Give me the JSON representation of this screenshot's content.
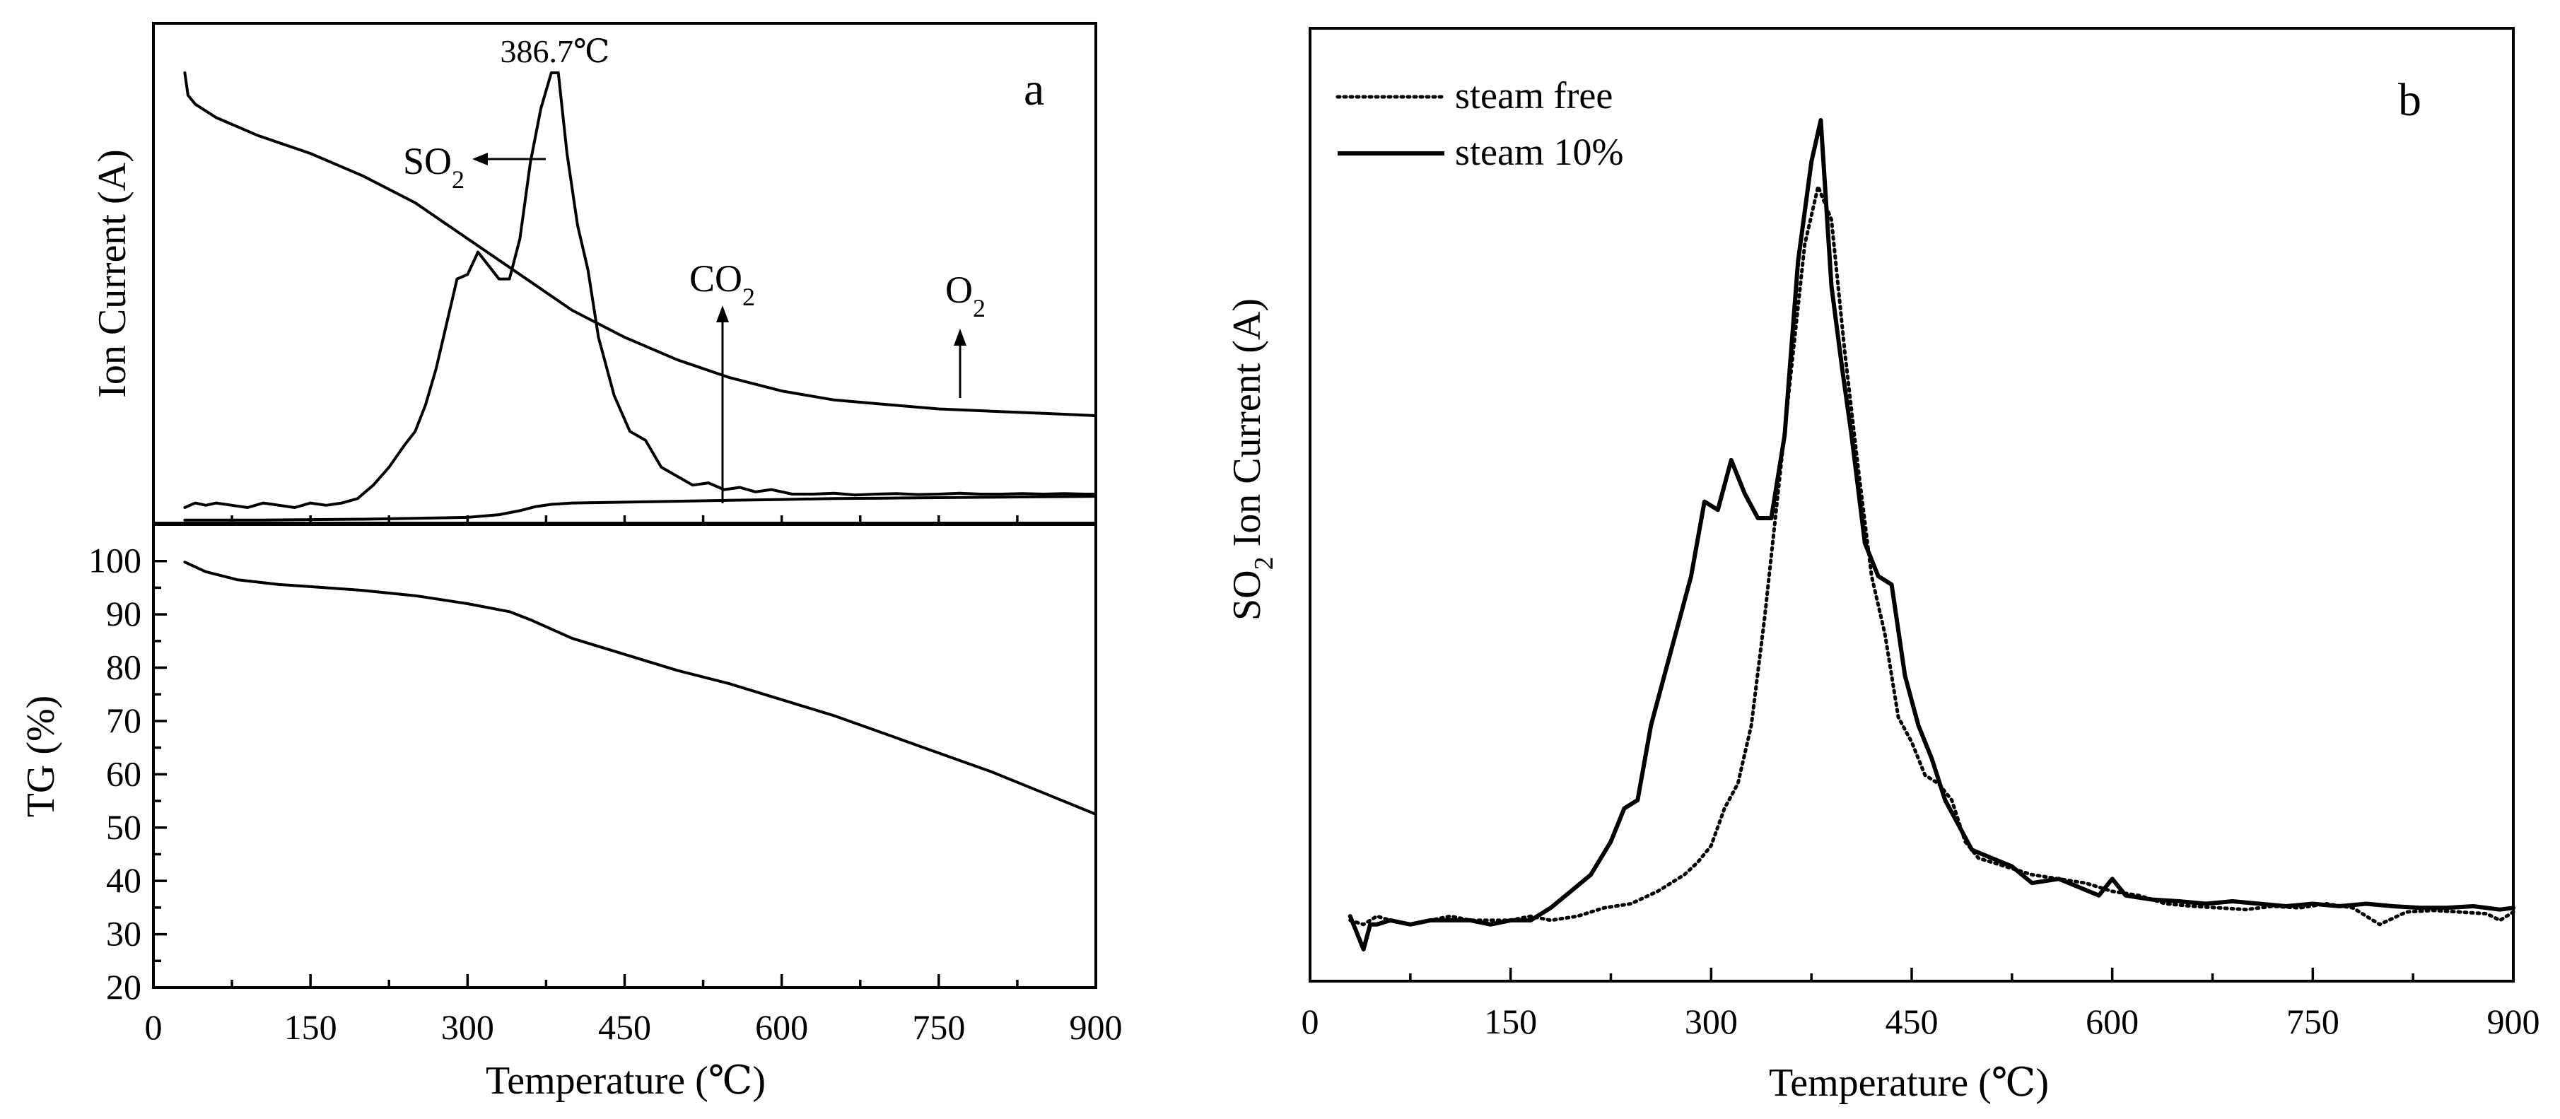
{
  "chart_data": [
    {
      "panel_label": "a",
      "type": "line",
      "subplots": [
        {
          "name": "ion-current",
          "ylabel": "Ion Current (A)",
          "y_ticks_shown": false,
          "xlim": [
            0,
            900
          ],
          "ylim": [
            0,
            100
          ],
          "series": [
            {
              "name": "SO2",
              "x": [
                30,
                40,
                50,
                60,
                75,
                90,
                105,
                120,
                135,
                150,
                165,
                180,
                195,
                210,
                225,
                240,
                250,
                260,
                270,
                280,
                290,
                300,
                310,
                320,
                330,
                340,
                350,
                360,
                370,
                380,
                386.7,
                395,
                405,
                415,
                425,
                440,
                455,
                470,
                485,
                500,
                515,
                530,
                545,
                560,
                575,
                590,
                610,
                630,
                650,
                670,
                690,
                710,
                730,
                750,
                770,
                790,
                810,
                830,
                850,
                870,
                890,
                900
              ],
              "values": [
                3,
                4,
                3.5,
                4,
                3.5,
                3,
                4,
                3.5,
                3,
                4,
                3.5,
                4,
                5,
                8,
                12,
                17,
                20,
                26,
                34,
                44,
                54,
                55,
                60,
                57,
                54,
                54,
                63,
                80,
                92,
                100,
                100,
                82,
                66,
                56,
                41,
                28,
                20,
                18,
                12,
                10,
                8,
                8.5,
                7,
                7.5,
                6.5,
                7,
                6,
                6,
                6.2,
                5.8,
                6,
                6.1,
                5.9,
                6,
                6.2,
                6,
                6,
                6.1,
                6,
                6.1,
                6,
                6
              ]
            },
            {
              "name": "CO2",
              "x": [
                30,
                100,
                200,
                300,
                330,
                350,
                365,
                380,
                400,
                450,
                500,
                550,
                600,
                650,
                700,
                750,
                800,
                850,
                900
              ],
              "values": [
                0.2,
                0.2,
                0.4,
                0.8,
                1.4,
                2.3,
                3.2,
                3.7,
                4,
                4.2,
                4.4,
                4.6,
                4.8,
                5,
                5.1,
                5.2,
                5.3,
                5.4,
                5.5
              ]
            },
            {
              "name": "O2",
              "x": [
                30,
                33,
                40,
                60,
                100,
                150,
                200,
                250,
                300,
                350,
                400,
                450,
                500,
                550,
                600,
                650,
                700,
                750,
                800,
                850,
                900
              ],
              "values": [
                100,
                95,
                93,
                90,
                86,
                82,
                77,
                71,
                63,
                55,
                47,
                41,
                36,
                32,
                29,
                27,
                26,
                25,
                24.5,
                24,
                23.5
              ]
            }
          ],
          "annotations": [
            {
              "text": "386.7℃",
              "x": 386.7,
              "y": 104
            },
            {
              "text_main": "SO",
              "text_sub": "2",
              "arrow_to": "left"
            },
            {
              "text_main": "CO",
              "text_sub": "2",
              "arrow_to": "up"
            },
            {
              "text_main": "O",
              "text_sub": "2",
              "arrow_to": "up"
            }
          ]
        },
        {
          "name": "tg",
          "ylabel": "TG (%)",
          "xlabel": "Temperature (℃)",
          "xlim": [
            0,
            900
          ],
          "ylim": [
            20,
            105
          ],
          "x_ticks": [
            0,
            150,
            300,
            450,
            600,
            750,
            900
          ],
          "x_tick_labels": [
            "0",
            "150",
            "300",
            "450",
            "600",
            "750",
            "900"
          ],
          "y_ticks": [
            20,
            30,
            40,
            50,
            60,
            70,
            80,
            90,
            100
          ],
          "y_tick_labels": [
            "20",
            "30",
            "40",
            "50",
            "60",
            "70",
            "80",
            "90",
            "100"
          ],
          "series": [
            {
              "name": "TG",
              "x": [
                30,
                50,
                80,
                120,
                150,
                200,
                250,
                300,
                340,
                360,
                400,
                450,
                500,
                550,
                600,
                650,
                700,
                750,
                800,
                850,
                900
              ],
              "values": [
                99.8,
                98,
                96.5,
                95.6,
                95.2,
                94.5,
                93.5,
                92,
                90.5,
                89,
                85.5,
                82.5,
                79.5,
                77,
                74,
                71,
                67.5,
                64,
                60.5,
                56.5,
                52.5
              ]
            }
          ]
        }
      ]
    },
    {
      "panel_label": "b",
      "type": "line",
      "ylabel_main": "SO",
      "ylabel_sub": "2",
      "ylabel_rest": " Ion Current (A)",
      "xlabel": "Temperature (℃)",
      "y_ticks_shown": false,
      "xlim": [
        0,
        900
      ],
      "ylim": [
        0,
        100
      ],
      "x_ticks": [
        0,
        150,
        300,
        450,
        600,
        750,
        900
      ],
      "x_tick_labels": [
        "0",
        "150",
        "300",
        "450",
        "600",
        "750",
        "900"
      ],
      "legend": "top-left",
      "series": [
        {
          "name": "steam free",
          "style": "dotted",
          "x": [
            30,
            40,
            50,
            60,
            75,
            90,
            105,
            120,
            135,
            150,
            165,
            180,
            200,
            220,
            240,
            260,
            270,
            280,
            290,
            300,
            310,
            320,
            330,
            340,
            350,
            360,
            370,
            380,
            390,
            400,
            410,
            420,
            430,
            440,
            450,
            460,
            470,
            480,
            490,
            500,
            520,
            540,
            560,
            580,
            600,
            620,
            640,
            660,
            680,
            700,
            720,
            740,
            760,
            780,
            800,
            820,
            840,
            860,
            880,
            890,
            900
          ],
          "values": [
            3.5,
            3,
            4,
            3.5,
            3,
            3.5,
            4,
            3.5,
            3.5,
            3.5,
            4,
            3.5,
            4,
            5,
            5.5,
            7,
            8,
            9,
            10.5,
            12.5,
            17,
            20,
            27,
            40,
            55,
            70,
            85,
            92,
            88,
            72,
            58,
            45,
            38,
            28,
            25,
            21,
            20,
            18,
            13,
            11,
            10,
            9,
            8.5,
            8,
            7,
            6.5,
            5.5,
            5.2,
            5,
            4.8,
            5.2,
            5,
            5.5,
            5,
            3,
            4.5,
            4.7,
            4.5,
            4.3,
            3.5,
            4.5
          ]
        },
        {
          "name": "steam 10%",
          "style": "solid",
          "x": [
            30,
            35,
            40,
            45,
            50,
            60,
            75,
            90,
            105,
            120,
            135,
            150,
            165,
            180,
            195,
            210,
            225,
            235,
            245,
            255,
            265,
            275,
            285,
            295,
            305,
            315,
            325,
            335,
            345,
            355,
            365,
            375,
            382,
            390,
            398,
            405,
            415,
            425,
            435,
            445,
            455,
            465,
            475,
            485,
            495,
            510,
            525,
            540,
            560,
            575,
            590,
            600,
            610,
            630,
            650,
            670,
            690,
            710,
            730,
            750,
            770,
            790,
            810,
            830,
            850,
            870,
            890,
            900
          ],
          "values": [
            4,
            2,
            0,
            3,
            3,
            3.5,
            3,
            3.5,
            3.5,
            3.5,
            3,
            3.5,
            3.5,
            5,
            7,
            9,
            13,
            17,
            18,
            27,
            33,
            39,
            45,
            54,
            53,
            59,
            55,
            52,
            52,
            62,
            83,
            95,
            100,
            80,
            70,
            62,
            49,
            45,
            44,
            33,
            27,
            23,
            18,
            15,
            12,
            11,
            10,
            8,
            8.5,
            7.5,
            6.5,
            8.5,
            6.5,
            6,
            5.8,
            5.5,
            5.8,
            5.5,
            5.2,
            5.5,
            5.2,
            5.5,
            5.2,
            5,
            5,
            5.2,
            4.8,
            5
          ]
        }
      ]
    }
  ]
}
